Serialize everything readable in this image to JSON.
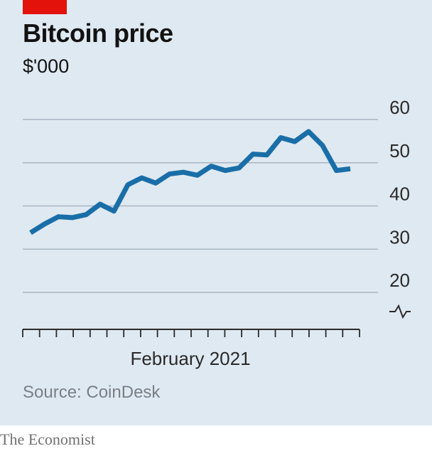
{
  "brand": {
    "accent": "#e3120b",
    "name": "The Economist",
    "background": "#dfe9f1",
    "line_color": "#1a6ea8"
  },
  "chart_data": {
    "type": "line",
    "title": "Bitcoin price",
    "subtitle": "$'000",
    "xlabel": "February 2021",
    "ylabel": "",
    "ylim": [
      20,
      60
    ],
    "y_ticks": [
      60,
      50,
      40,
      30,
      20
    ],
    "y_axis_break": true,
    "grid": true,
    "x_tick_count": 21,
    "series": [
      {
        "values": [
          33.8,
          35.8,
          37.5,
          37.3,
          38.0,
          40.4,
          38.8,
          44.9,
          46.5,
          45.3,
          47.4,
          47.8,
          47.1,
          49.2,
          48.2,
          48.8,
          52.0,
          51.8,
          55.8,
          54.9,
          57.2,
          54.0,
          48.2,
          48.6
        ]
      }
    ],
    "source": "Source: CoinDesk"
  }
}
